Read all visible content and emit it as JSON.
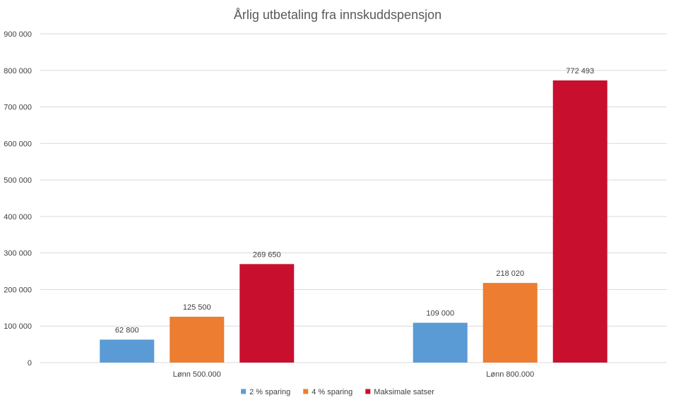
{
  "chart_data": {
    "type": "bar",
    "title": "Årlig utbetaling fra innskuddspensjon",
    "xlabel": "",
    "ylabel": "",
    "categories": [
      "Lønn 500.000",
      "Lønn 800.000"
    ],
    "series": [
      {
        "name": "2 % sparing",
        "color": "#5b9bd5",
        "values": [
          62800,
          109000
        ],
        "labels": [
          "62 800",
          "109 000"
        ]
      },
      {
        "name": "4 % sparing",
        "color": "#ed7d31",
        "values": [
          125500,
          218020
        ],
        "labels": [
          "125 500",
          "218 020"
        ]
      },
      {
        "name": "Maksimale satser",
        "color": "#c8102e",
        "values": [
          269650,
          772493
        ],
        "labels": [
          "269 650",
          "772 493"
        ]
      }
    ],
    "ylim": [
      0,
      900000
    ],
    "yticks": [
      0,
      100000,
      200000,
      300000,
      400000,
      500000,
      600000,
      700000,
      800000,
      900000
    ],
    "ytick_labels": [
      "0",
      "100 000",
      "200 000",
      "300 000",
      "400 000",
      "500 000",
      "600 000",
      "700 000",
      "800 000",
      "900 000"
    ],
    "grid": true,
    "legend_position": "bottom"
  }
}
